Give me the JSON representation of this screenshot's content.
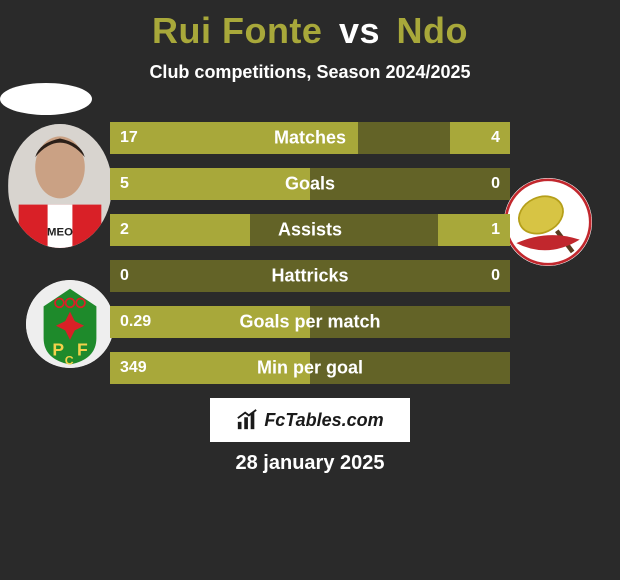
{
  "title_left": "Rui Fonte",
  "title_vs": "vs",
  "title_right": "Ndo",
  "title_colors": {
    "left": "#a8a83a",
    "vs": "#ffffff",
    "right": "#a8a83a"
  },
  "subtitle": "Club competitions, Season 2024/2025",
  "bars": [
    {
      "label": "Matches",
      "left": "17",
      "right": "4",
      "left_pct": 62,
      "right_pct": 15
    },
    {
      "label": "Goals",
      "left": "5",
      "right": "0",
      "left_pct": 50,
      "right_pct": 0
    },
    {
      "label": "Assists",
      "left": "2",
      "right": "1",
      "left_pct": 35,
      "right_pct": 18
    },
    {
      "label": "Hattricks",
      "left": "0",
      "right": "0",
      "left_pct": 0,
      "right_pct": 0
    },
    {
      "label": "Goals per match",
      "left": "0.29",
      "right": "",
      "left_pct": 50,
      "right_pct": 0
    },
    {
      "label": "Min per goal",
      "left": "349",
      "right": "",
      "left_pct": 50,
      "right_pct": 0
    }
  ],
  "bar_colors": {
    "bg": "#636327",
    "fill": "#a8a83a"
  },
  "footer_brand": "FcTables.com",
  "date": "28 january 2025",
  "background_color": "#2a2a2a"
}
